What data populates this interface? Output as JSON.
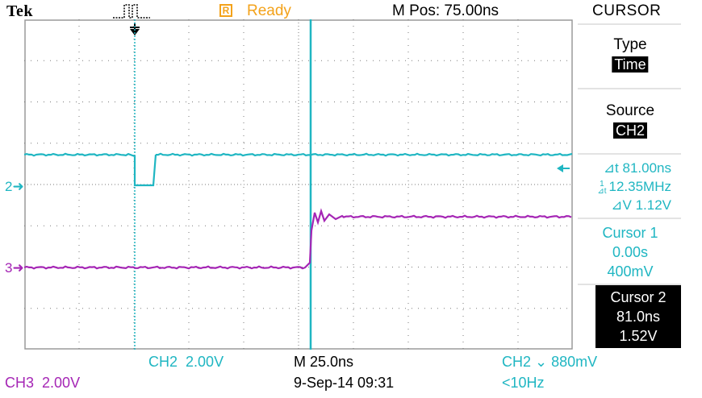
{
  "top_bar": {
    "brand": "Tek",
    "trigger_icon": "trigger-pulse-icon",
    "acq_state_icon": "R",
    "acq_state": "Ready",
    "m_pos": "M Pos: 75.00ns",
    "menu_title": "CURSOR"
  },
  "side_menu": {
    "type_label": "Type",
    "type_value": "Time",
    "source_label": "Source",
    "source_value": "CH2",
    "delta_t": "⊿t 81.00ns",
    "inv_delta_t": "12.35MHz",
    "delta_v": "⊿V 1.12V",
    "cursor1": {
      "label": "Cursor 1",
      "time": "0.00s",
      "volts": "400mV"
    },
    "cursor2": {
      "label": "Cursor 2",
      "time": "81.0ns",
      "volts": "1.52V"
    }
  },
  "channel_markers": {
    "ch2": "2",
    "ch3": "3"
  },
  "bottom_bar": {
    "ch2_label": "CH2",
    "ch2_scale": "2.00V",
    "timebase": "M 25.0ns",
    "trigger_readout": "CH2 ⌄ 880mV",
    "ch3_label": "CH3",
    "ch3_scale": "2.00V",
    "datetime": "9-Sep-14 09:31",
    "trigger_freq": "<10Hz"
  },
  "colors": {
    "ch2": "#1fb6c2",
    "ch3": "#a526b5",
    "status": "#f3a21a",
    "grid": "#7a7a7a"
  }
}
